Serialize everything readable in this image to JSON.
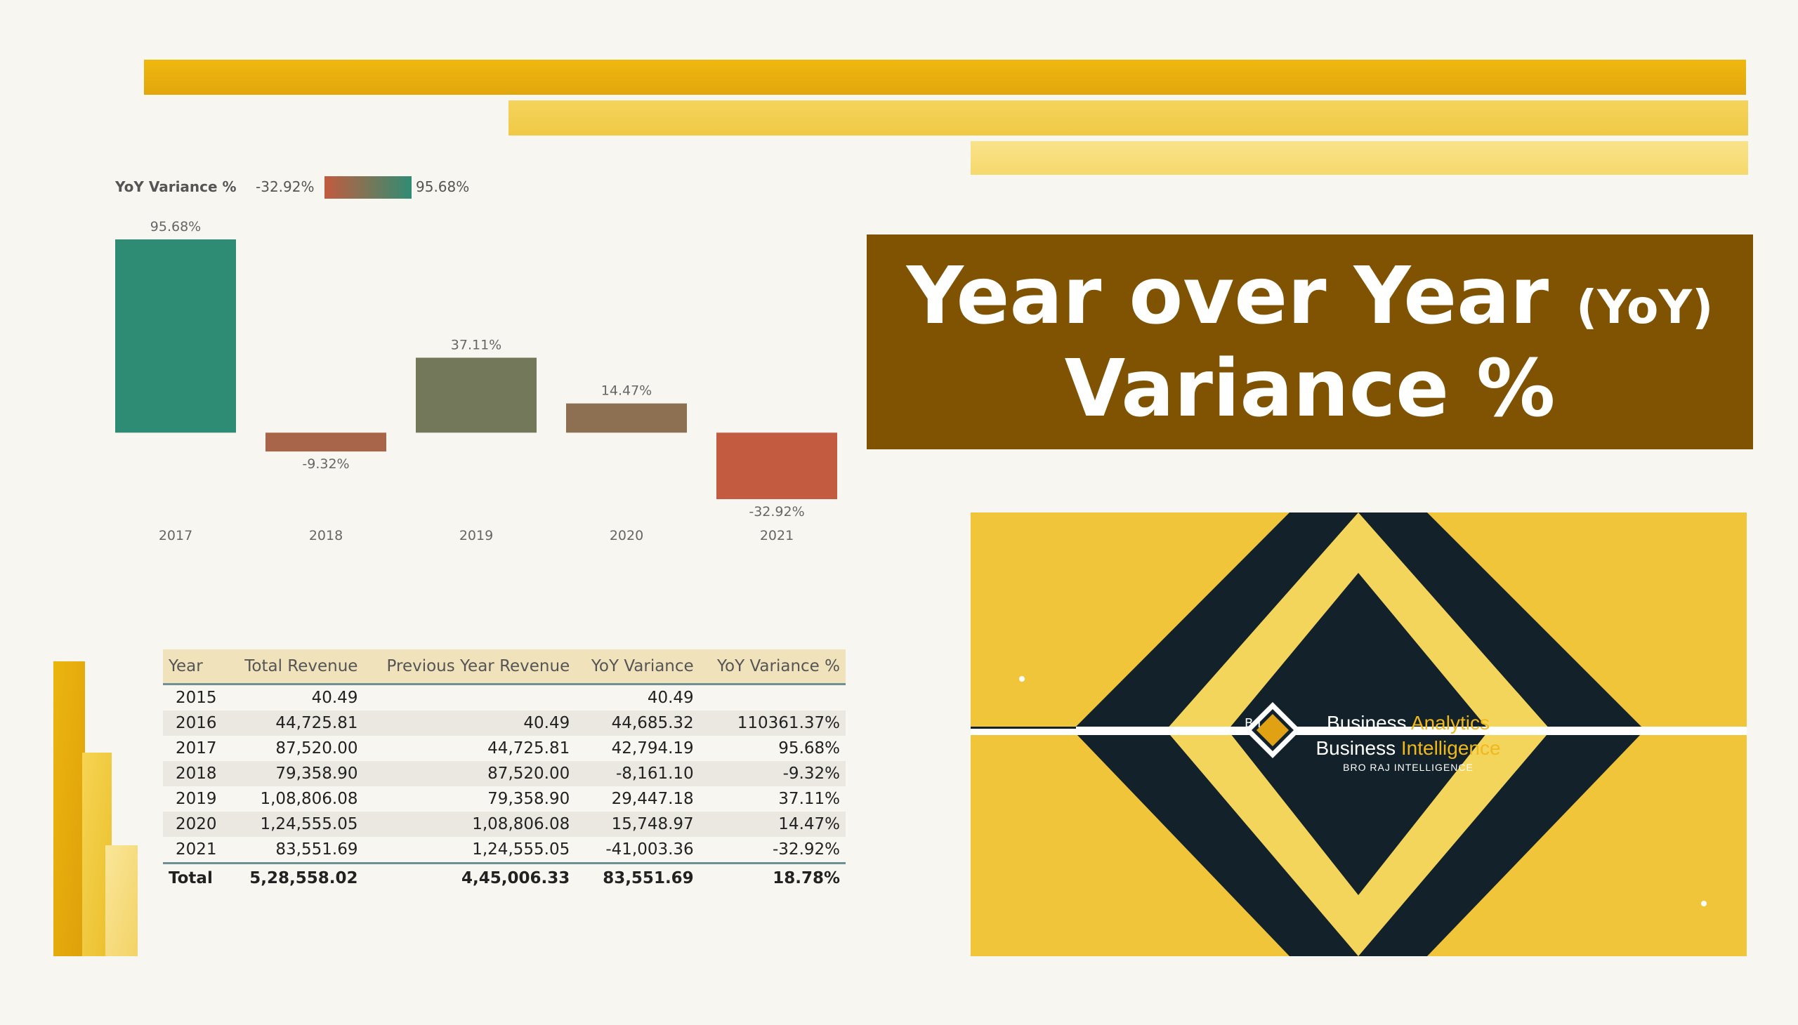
{
  "title": {
    "line1_main": "Year over Year",
    "line1_small": "(YoY)",
    "line2": "Variance %"
  },
  "legend": {
    "label": "YoY Variance %",
    "min": "-32.92%",
    "max": "95.68%",
    "colors": {
      "low": "#c25b40",
      "mid": "#7a7658",
      "high": "#2f8c74"
    }
  },
  "chart_data": {
    "type": "bar",
    "categories": [
      "2017",
      "2018",
      "2019",
      "2020",
      "2021"
    ],
    "values": [
      95.68,
      -9.32,
      37.11,
      14.47,
      -32.92
    ],
    "data_labels": [
      "95.68%",
      "-9.32%",
      "37.11%",
      "14.47%",
      "-32.92%"
    ],
    "ylim": [
      -32.92,
      95.68
    ],
    "grid": false,
    "legend": "top-left"
  },
  "table": {
    "headers": [
      "Year",
      "Total Revenue",
      "Previous Year Revenue",
      "YoY Variance",
      "YoY Variance %"
    ],
    "rows": [
      [
        "2015",
        "40.49",
        "",
        "40.49",
        ""
      ],
      [
        "2016",
        "44,725.81",
        "40.49",
        "44,685.32",
        "110361.37%"
      ],
      [
        "2017",
        "87,520.00",
        "44,725.81",
        "42,794.19",
        "95.68%"
      ],
      [
        "2018",
        "79,358.90",
        "87,520.00",
        "-8,161.10",
        "-9.32%"
      ],
      [
        "2019",
        "1,08,806.08",
        "79,358.90",
        "29,447.18",
        "37.11%"
      ],
      [
        "2020",
        "1,24,555.05",
        "1,08,806.08",
        "15,748.97",
        "14.47%"
      ],
      [
        "2021",
        "83,551.69",
        "1,24,555.05",
        "-41,003.36",
        "-32.92%"
      ]
    ],
    "total": [
      "Total",
      "5,28,558.02",
      "4,45,006.33",
      "83,551.69",
      "18.78%"
    ]
  },
  "logo": {
    "line1_a": "Business ",
    "line1_b": "Analytics",
    "line2_a": "Business ",
    "line2_b": "Intelligence",
    "line3": "BRO RAJ INTELLIGENCE",
    "badge": "B I"
  }
}
